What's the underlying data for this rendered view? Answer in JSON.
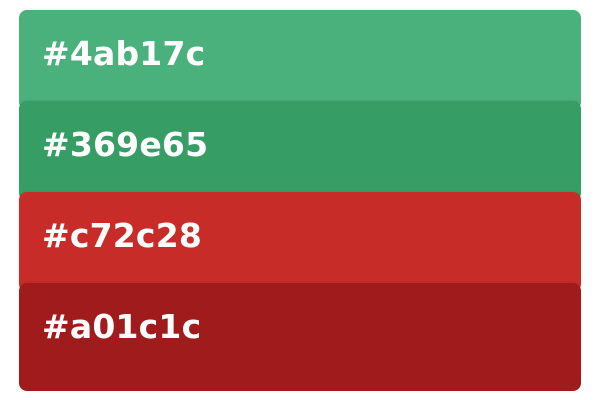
{
  "palette": {
    "swatches": [
      {
        "label": "#4ab17c",
        "color": "#4ab17c"
      },
      {
        "label": "#369e65",
        "color": "#369e65"
      },
      {
        "label": "#c72c28",
        "color": "#c72c28"
      },
      {
        "label": "#a01c1c",
        "color": "#a01c1c"
      }
    ]
  }
}
